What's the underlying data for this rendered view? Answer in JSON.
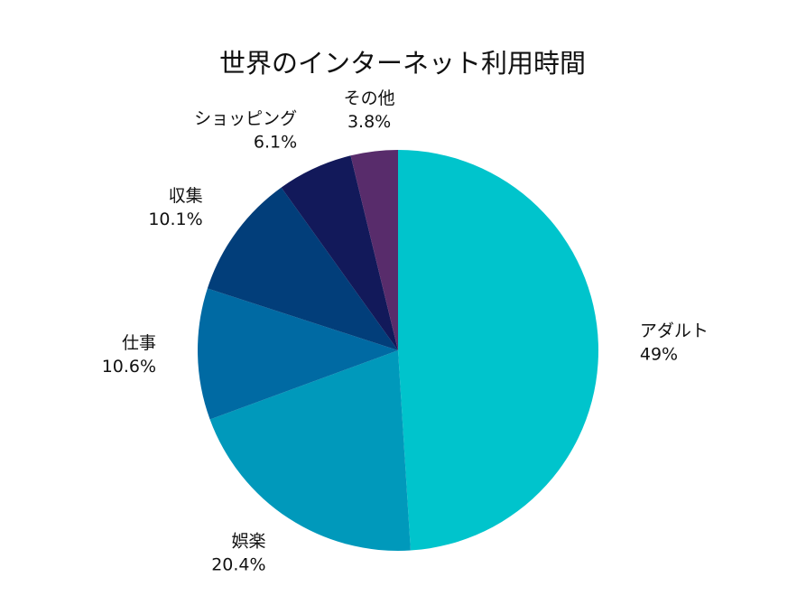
{
  "chart_data": {
    "type": "pie",
    "title": "世界のインターネット利用時間",
    "slices": [
      {
        "label": "アダルト",
        "value": 49,
        "value_label": "49%",
        "color": "#00c4cc"
      },
      {
        "label": "娯楽",
        "value": 20.4,
        "value_label": "20.4%",
        "color": "#0099bb"
      },
      {
        "label": "仕事",
        "value": 10.6,
        "value_label": "10.6%",
        "color": "#006aa3"
      },
      {
        "label": "収集",
        "value": 10.1,
        "value_label": "10.1%",
        "color": "#023e7a"
      },
      {
        "label": "ショッピング",
        "value": 6.1,
        "value_label": "6.1%",
        "color": "#12195a"
      },
      {
        "label": "その他",
        "value": 3.8,
        "value_label": "3.8%",
        "color": "#582c6b"
      }
    ],
    "start_angle": "12 o'clock",
    "direction": "clockwise",
    "legend": "none",
    "labels": "outside slices"
  }
}
